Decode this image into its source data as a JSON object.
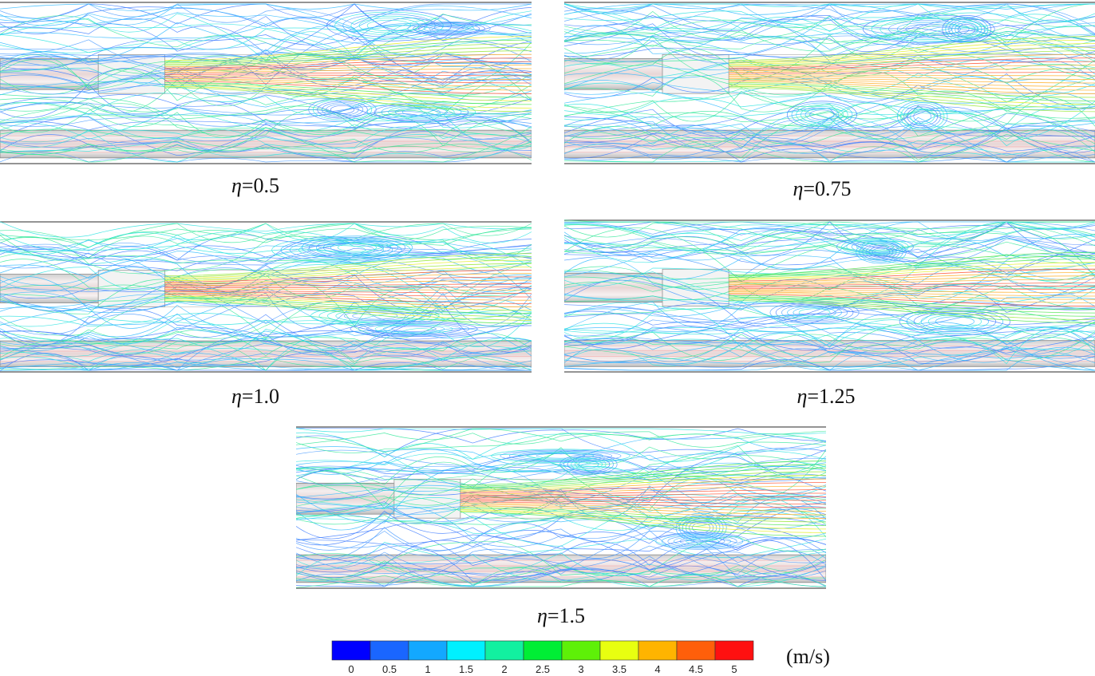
{
  "panels": [
    {
      "id": "p1",
      "symbol": "η",
      "value": "=0.5"
    },
    {
      "id": "p2",
      "symbol": "η",
      "value": "=0.75"
    },
    {
      "id": "p3",
      "symbol": "η",
      "value": "=1.0"
    },
    {
      "id": "p4",
      "symbol": "η",
      "value": "=1.25"
    },
    {
      "id": "p5",
      "symbol": "η",
      "value": "=1.5"
    }
  ],
  "colorbar": {
    "unit": "(m/s)",
    "ticks": [
      "0",
      "0.5",
      "1",
      "1.5",
      "2",
      "2.5",
      "3",
      "3.5",
      "4",
      "4.5",
      "5"
    ],
    "colors": [
      "#0000ff",
      "#1a66ff",
      "#13a8ff",
      "#00f0ff",
      "#12f0a0",
      "#00ee35",
      "#5ef008",
      "#e8ff10",
      "#ffb400",
      "#ff5f0a",
      "#ff1010"
    ]
  }
}
